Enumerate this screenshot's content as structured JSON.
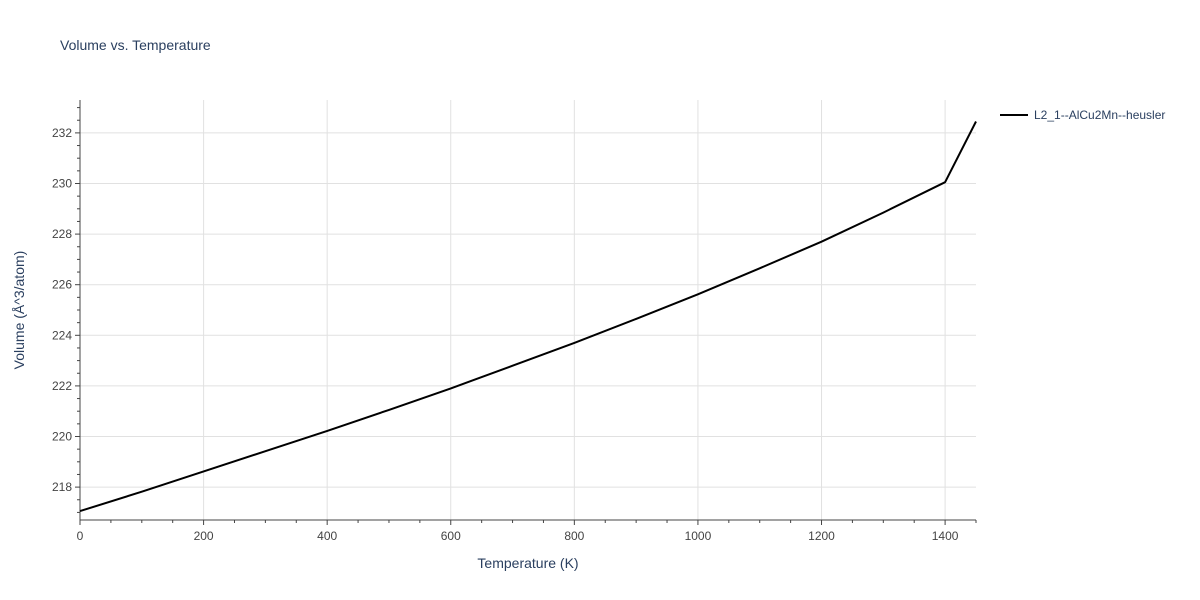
{
  "chart_data": {
    "type": "line",
    "title": "Volume vs. Temperature",
    "xlabel": "Temperature (K)",
    "ylabel": "Volume (Å^3/atom)",
    "xlim": [
      0,
      1450
    ],
    "ylim": [
      216.7,
      233.3
    ],
    "x_ticks": [
      0,
      200,
      400,
      600,
      800,
      1000,
      1200,
      1400
    ],
    "y_ticks": [
      218,
      220,
      222,
      224,
      226,
      228,
      230,
      232
    ],
    "grid": true,
    "legend_position": "top-right",
    "series": [
      {
        "name": "L2_1--AlCu2Mn--heusler",
        "color": "#000000",
        "x": [
          0,
          100,
          200,
          300,
          400,
          500,
          600,
          700,
          800,
          900,
          1000,
          1100,
          1200,
          1300,
          1400,
          1450
        ],
        "y": [
          217.05,
          217.82,
          218.62,
          219.42,
          220.22,
          221.05,
          221.9,
          222.8,
          223.7,
          224.65,
          225.62,
          226.65,
          227.7,
          228.85,
          230.05,
          232.45
        ]
      }
    ]
  }
}
